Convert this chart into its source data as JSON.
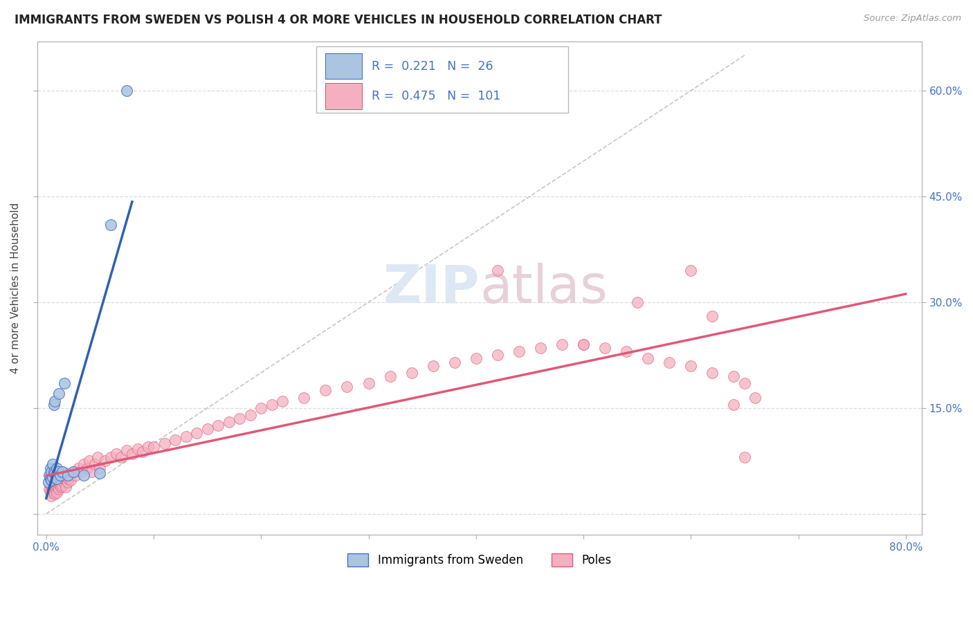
{
  "title": "IMMIGRANTS FROM SWEDEN VS POLISH 4 OR MORE VEHICLES IN HOUSEHOLD CORRELATION CHART",
  "source": "Source: ZipAtlas.com",
  "ylabel": "4 or more Vehicles in Household",
  "xlim": [
    -0.008,
    0.815
  ],
  "ylim": [
    -0.03,
    0.67
  ],
  "xtick_vals": [
    0.0,
    0.1,
    0.2,
    0.3,
    0.4,
    0.5,
    0.6,
    0.7,
    0.8
  ],
  "xticklabels": [
    "0.0%",
    "",
    "",
    "",
    "",
    "",
    "",
    "",
    "80.0%"
  ],
  "ytick_vals": [
    0.0,
    0.15,
    0.3,
    0.45,
    0.6
  ],
  "yticklabels_right": [
    "",
    "15.0%",
    "30.0%",
    "45.0%",
    "60.0%"
  ],
  "legend_label1": "Immigrants from Sweden",
  "legend_label2": "Poles",
  "R1": 0.221,
  "N1": 26,
  "R2": 0.475,
  "N2": 101,
  "color_sweden_fill": "#aac4e2",
  "color_sweden_edge": "#4472c4",
  "color_poles_fill": "#f4b0c0",
  "color_poles_edge": "#e05878",
  "color_sweden_line": "#3060b0",
  "color_poles_line": "#e05878",
  "color_diagonal": "#c0c0c0",
  "color_grid": "#d8d8d8",
  "color_tick": "#4472c4",
  "color_title": "#222222",
  "color_source": "#999999",
  "sweden_x": [
    0.002,
    0.003,
    0.004,
    0.004,
    0.005,
    0.005,
    0.006,
    0.006,
    0.007,
    0.007,
    0.008,
    0.008,
    0.009,
    0.01,
    0.01,
    0.011,
    0.012,
    0.013,
    0.015,
    0.017,
    0.02,
    0.025,
    0.035,
    0.05,
    0.06,
    0.075
  ],
  "sweden_y": [
    0.045,
    0.055,
    0.05,
    0.065,
    0.048,
    0.06,
    0.052,
    0.07,
    0.06,
    0.155,
    0.058,
    0.16,
    0.055,
    0.05,
    0.065,
    0.06,
    0.17,
    0.055,
    0.06,
    0.185,
    0.055,
    0.06,
    0.055,
    0.058,
    0.41,
    0.6
  ],
  "poles_x": [
    0.003,
    0.004,
    0.004,
    0.005,
    0.005,
    0.005,
    0.006,
    0.006,
    0.006,
    0.007,
    0.007,
    0.007,
    0.008,
    0.008,
    0.008,
    0.009,
    0.009,
    0.01,
    0.01,
    0.01,
    0.01,
    0.011,
    0.011,
    0.012,
    0.012,
    0.013,
    0.013,
    0.014,
    0.015,
    0.015,
    0.016,
    0.017,
    0.018,
    0.019,
    0.02,
    0.021,
    0.022,
    0.023,
    0.025,
    0.027,
    0.03,
    0.032,
    0.035,
    0.038,
    0.04,
    0.042,
    0.045,
    0.048,
    0.05,
    0.055,
    0.06,
    0.065,
    0.07,
    0.075,
    0.08,
    0.085,
    0.09,
    0.095,
    0.1,
    0.11,
    0.12,
    0.13,
    0.14,
    0.15,
    0.16,
    0.17,
    0.18,
    0.19,
    0.2,
    0.21,
    0.22,
    0.24,
    0.26,
    0.28,
    0.3,
    0.32,
    0.34,
    0.36,
    0.38,
    0.4,
    0.42,
    0.44,
    0.46,
    0.48,
    0.5,
    0.52,
    0.54,
    0.56,
    0.58,
    0.6,
    0.62,
    0.64,
    0.65,
    0.42,
    0.5,
    0.55,
    0.6,
    0.62,
    0.64,
    0.65,
    0.66
  ],
  "poles_y": [
    0.035,
    0.04,
    0.03,
    0.038,
    0.048,
    0.025,
    0.042,
    0.035,
    0.05,
    0.038,
    0.03,
    0.055,
    0.04,
    0.028,
    0.055,
    0.035,
    0.048,
    0.038,
    0.03,
    0.055,
    0.045,
    0.038,
    0.052,
    0.035,
    0.048,
    0.04,
    0.055,
    0.038,
    0.04,
    0.06,
    0.045,
    0.05,
    0.038,
    0.058,
    0.045,
    0.05,
    0.055,
    0.048,
    0.06,
    0.055,
    0.065,
    0.06,
    0.07,
    0.065,
    0.075,
    0.06,
    0.07,
    0.08,
    0.065,
    0.075,
    0.08,
    0.085,
    0.08,
    0.09,
    0.085,
    0.092,
    0.088,
    0.095,
    0.095,
    0.1,
    0.105,
    0.11,
    0.115,
    0.12,
    0.125,
    0.13,
    0.135,
    0.14,
    0.15,
    0.155,
    0.16,
    0.165,
    0.175,
    0.18,
    0.185,
    0.195,
    0.2,
    0.21,
    0.215,
    0.22,
    0.225,
    0.23,
    0.235,
    0.24,
    0.24,
    0.235,
    0.23,
    0.22,
    0.215,
    0.21,
    0.2,
    0.195,
    0.185,
    0.345,
    0.24,
    0.3,
    0.345,
    0.28,
    0.155,
    0.08,
    0.165
  ]
}
